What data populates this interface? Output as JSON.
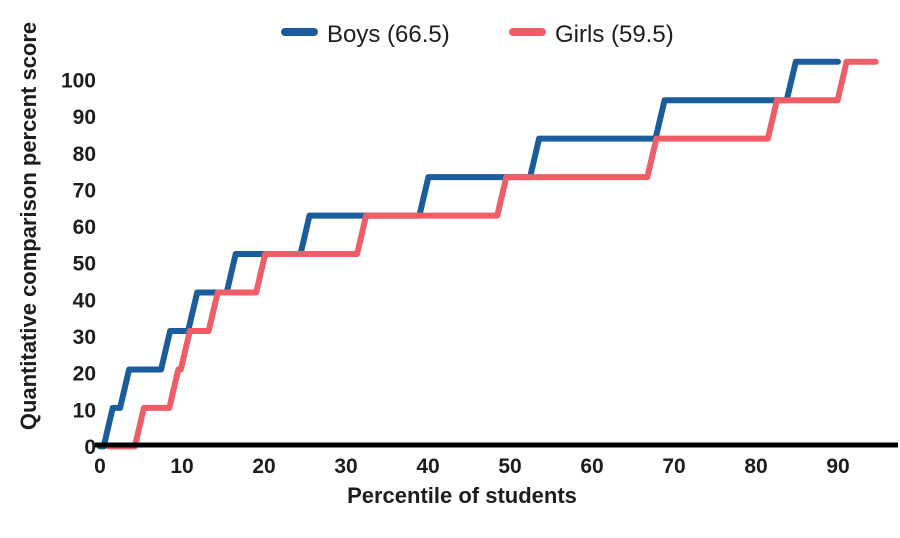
{
  "legend": {
    "items": [
      {
        "key": "boys",
        "label": "Boys (66.5)",
        "color": "#1b5c9c"
      },
      {
        "key": "girls",
        "label": "Girls (59.5)",
        "color": "#ef5e66"
      }
    ]
  },
  "axes": {
    "x": {
      "title": "Percentile of students",
      "tick_labels": [
        "0",
        "10",
        "20",
        "30",
        "40",
        "50",
        "60",
        "70",
        "80",
        "90"
      ]
    },
    "y": {
      "title": "Quantitative comparison percent score",
      "tick_labels": [
        "0",
        "10",
        "20",
        "30",
        "40",
        "50",
        "60",
        "70",
        "80",
        "90",
        "100"
      ]
    }
  },
  "chart_data": {
    "type": "line",
    "subtype": "step",
    "title": "",
    "xlabel": "Percentile of students",
    "ylabel": "Quantitative comparison percent score",
    "x_ticks": [
      0,
      10,
      20,
      30,
      40,
      50,
      60,
      70,
      80,
      90
    ],
    "y_ticks": [
      0,
      10,
      20,
      30,
      40,
      50,
      60,
      70,
      80,
      90,
      100
    ],
    "xlim": [
      0,
      97
    ],
    "ylim": [
      0,
      105
    ],
    "grid": false,
    "legend_position": "top-center",
    "step_levels": [
      10.5,
      21,
      31.5,
      42,
      52.5,
      63,
      73.5,
      84,
      94.5,
      105
    ],
    "series": [
      {
        "key": "boys",
        "name": "Boys (66.5)",
        "mean_score": 66.5,
        "color": "#1b5c9c",
        "baseline_start_x": 0,
        "riser_x": [
          1,
          3,
          8,
          11.3,
          16,
          25,
          39.5,
          53,
          68.3,
          84.3
        ],
        "end_x": 90
      },
      {
        "key": "girls",
        "name": "Girls (59.5)",
        "mean_score": 59.5,
        "color": "#ef5e66",
        "baseline_start_x": 1,
        "riser_x": [
          4.8,
          9,
          10.4,
          13.8,
          19.6,
          31.9,
          49,
          67.3,
          82,
          90.5
        ],
        "end_x": 94.6
      }
    ]
  }
}
